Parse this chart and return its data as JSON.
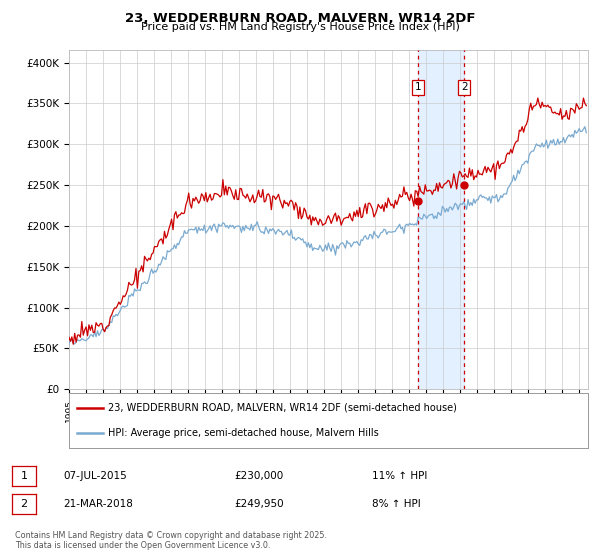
{
  "title_line1": "23, WEDDERBURN ROAD, MALVERN, WR14 2DF",
  "title_line2": "Price paid vs. HM Land Registry's House Price Index (HPI)",
  "ylabel_ticks": [
    "£0",
    "£50K",
    "£100K",
    "£150K",
    "£200K",
    "£250K",
    "£300K",
    "£350K",
    "£400K"
  ],
  "ytick_values": [
    0,
    50000,
    100000,
    150000,
    200000,
    250000,
    300000,
    350000,
    400000
  ],
  "ylim": [
    0,
    415000
  ],
  "xlim_start": 1995.0,
  "xlim_end": 2025.5,
  "line1_color": "#cc0000",
  "line2_color": "#7aaad0",
  "shading_color": "#ddeeff",
  "dashed_color": "#cc0000",
  "marker1_x": 2015.52,
  "marker2_x": 2018.22,
  "marker1_y": 230000,
  "marker2_y": 249950,
  "legend_label1": "23, WEDDERBURN ROAD, MALVERN, WR14 2DF (semi-detached house)",
  "legend_label2": "HPI: Average price, semi-detached house, Malvern Hills",
  "sale1_label": "1",
  "sale1_date": "07-JUL-2015",
  "sale1_price": "£230,000",
  "sale1_hpi": "11% ↑ HPI",
  "sale2_label": "2",
  "sale2_date": "21-MAR-2018",
  "sale2_price": "£249,950",
  "sale2_hpi": "8% ↑ HPI",
  "footnote": "Contains HM Land Registry data © Crown copyright and database right 2025.\nThis data is licensed under the Open Government Licence v3.0.",
  "bg_color": "#ffffff",
  "plot_bg_color": "#ffffff",
  "grid_color": "#cccccc"
}
